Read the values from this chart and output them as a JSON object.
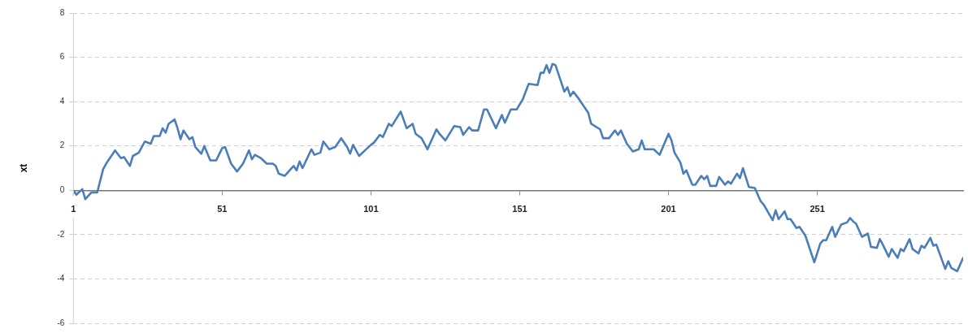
{
  "chart_data": {
    "type": "line",
    "ylabel": "xt",
    "xlim": [
      1,
      300
    ],
    "xticks": [
      1,
      51,
      101,
      151,
      201,
      251
    ],
    "ylim": [
      -6,
      8
    ],
    "yticks": [
      -6,
      -4,
      -2,
      0,
      2,
      4,
      6,
      8
    ],
    "grid": "y",
    "legend": false,
    "marker": "none",
    "line_style": "solid",
    "series": [
      {
        "color": "#4a7ebb",
        "x": [
          1,
          2,
          4,
          5,
          7,
          9,
          11,
          12,
          15,
          17,
          18,
          20,
          21,
          23,
          25,
          27,
          28,
          30,
          31,
          32,
          33,
          35,
          36,
          37,
          38,
          40,
          41,
          42,
          44,
          45,
          47,
          49,
          51,
          52,
          54,
          56,
          58,
          60,
          61,
          62,
          64,
          66,
          68,
          69,
          70,
          72,
          75,
          76,
          77,
          78,
          81,
          82,
          84,
          85,
          87,
          89,
          91,
          93,
          94,
          95,
          97,
          99,
          101,
          102,
          104,
          105,
          107,
          108,
          111,
          113,
          115,
          116,
          118,
          120,
          123,
          124,
          126,
          129,
          131,
          132,
          134,
          135,
          137,
          139,
          140,
          143,
          145,
          146,
          148,
          150,
          152,
          154,
          157,
          158,
          159,
          160,
          161,
          162,
          163,
          166,
          167,
          168,
          169,
          171,
          174,
          175,
          178,
          179,
          181,
          183,
          184,
          185,
          187,
          189,
          191,
          192,
          193,
          196,
          198,
          201,
          202,
          203,
          205,
          206,
          207,
          209,
          210,
          212,
          213,
          214,
          215,
          217,
          218,
          220,
          221,
          222,
          224,
          225,
          226,
          228,
          230,
          232,
          233,
          236,
          237,
          238,
          240,
          241,
          242,
          244,
          245,
          247,
          250,
          252,
          253,
          254,
          256,
          257,
          259,
          261,
          262,
          263,
          264,
          266,
          268,
          269,
          271,
          272,
          273,
          275,
          276,
          278,
          279,
          280,
          282,
          283,
          285,
          286,
          287,
          289,
          290,
          291,
          294,
          295,
          296,
          298,
          300
        ],
        "values": [
          0,
          -0.2,
          0.05,
          -0.4,
          -0.1,
          -0.1,
          0.95,
          1.2,
          1.8,
          1.45,
          1.5,
          1.1,
          1.55,
          1.7,
          2.2,
          2.1,
          2.45,
          2.45,
          2.8,
          2.6,
          3.0,
          3.2,
          2.8,
          2.3,
          2.7,
          2.3,
          2.4,
          1.95,
          1.65,
          2.0,
          1.35,
          1.35,
          1.9,
          1.95,
          1.2,
          0.85,
          1.2,
          1.8,
          1.4,
          1.6,
          1.45,
          1.2,
          1.2,
          1.1,
          0.75,
          0.65,
          1.1,
          0.9,
          1.3,
          1.0,
          1.85,
          1.6,
          1.7,
          2.2,
          1.85,
          1.95,
          2.35,
          1.95,
          1.65,
          2.05,
          1.55,
          1.8,
          2.05,
          2.15,
          2.5,
          2.4,
          3.0,
          2.9,
          3.55,
          2.8,
          3.0,
          2.55,
          2.35,
          1.85,
          2.75,
          2.55,
          2.25,
          2.9,
          2.85,
          2.5,
          2.85,
          2.7,
          2.7,
          3.65,
          3.65,
          2.8,
          3.4,
          3.05,
          3.65,
          3.65,
          4.1,
          4.8,
          4.75,
          5.3,
          5.3,
          5.65,
          5.3,
          5.7,
          5.65,
          4.45,
          4.65,
          4.25,
          4.45,
          4.1,
          3.5,
          3.0,
          2.75,
          2.35,
          2.35,
          2.7,
          2.5,
          2.7,
          2.1,
          1.75,
          1.85,
          2.25,
          1.85,
          1.85,
          1.6,
          2.55,
          2.25,
          1.7,
          1.25,
          0.75,
          0.9,
          0.25,
          0.25,
          0.65,
          0.5,
          0.65,
          0.2,
          0.2,
          0.6,
          0.25,
          0.4,
          0.3,
          0.75,
          0.55,
          1.0,
          0.15,
          0.1,
          -0.5,
          -0.65,
          -1.35,
          -0.9,
          -1.3,
          -0.95,
          -1.3,
          -1.3,
          -1.7,
          -1.65,
          -2.05,
          -3.25,
          -2.4,
          -2.25,
          -2.25,
          -1.65,
          -2.1,
          -1.55,
          -1.45,
          -1.25,
          -1.4,
          -1.5,
          -2.1,
          -1.95,
          -2.55,
          -2.6,
          -2.2,
          -2.45,
          -3.0,
          -2.65,
          -3.05,
          -2.65,
          -2.75,
          -2.2,
          -2.65,
          -2.85,
          -2.5,
          -2.6,
          -2.15,
          -2.5,
          -2.45,
          -3.55,
          -3.2,
          -3.5,
          -3.65,
          -3.05
        ]
      }
    ]
  }
}
